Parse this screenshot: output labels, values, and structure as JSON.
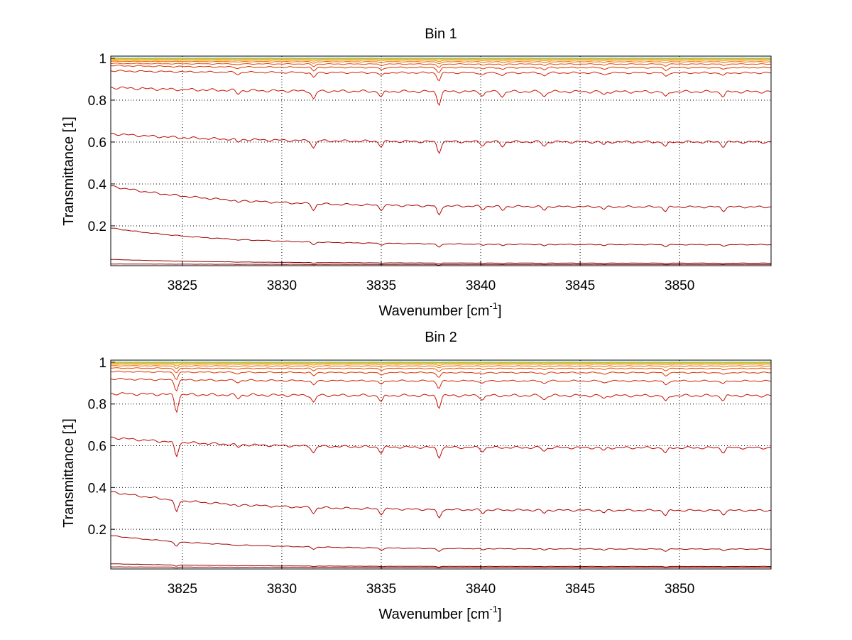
{
  "chart_data": [
    {
      "type": "line",
      "title": "Bin 1",
      "xlabel": "Wavenumber [cm",
      "xlabel_sup": "-1",
      "xlabel_suffix": "]",
      "ylabel": "Transmittance [1]",
      "xlim": [
        3821.4,
        3854.6
      ],
      "ylim": [
        0.01,
        1.01
      ],
      "xticks": [
        3825,
        3830,
        3835,
        3840,
        3845,
        3850
      ],
      "yticks": [
        0.2,
        0.4,
        0.6,
        0.8,
        1
      ],
      "ytick_labels": [
        "0.2",
        "0.4",
        "0.6",
        "0.8",
        "1"
      ],
      "grid": true,
      "features": [
        {
          "x": 3831.6,
          "depth": 1.0
        },
        {
          "x": 3835.0,
          "depth": 0.7
        },
        {
          "x": 3837.9,
          "depth": 1.5
        },
        {
          "x": 3827.8,
          "depth": 0.4
        },
        {
          "x": 3840.1,
          "depth": 0.5
        },
        {
          "x": 3841.1,
          "depth": 0.6
        },
        {
          "x": 3843.2,
          "depth": 0.6
        },
        {
          "x": 3846.2,
          "depth": 0.4
        },
        {
          "x": 3849.3,
          "depth": 0.7
        },
        {
          "x": 3852.2,
          "depth": 0.6
        }
      ],
      "series": [
        {
          "start": 0.018,
          "end": 0.016,
          "depth": 0.002,
          "color": "#800000"
        },
        {
          "start": 0.04,
          "end": 0.022,
          "depth": 0.003,
          "color": "#8b0000"
        },
        {
          "start": 0.19,
          "end": 0.11,
          "depth": 0.012,
          "color": "#a00000"
        },
        {
          "start": 0.39,
          "end": 0.29,
          "depth": 0.03,
          "color": "#b00000"
        },
        {
          "start": 0.64,
          "end": 0.6,
          "depth": 0.035,
          "color": "#c00000"
        },
        {
          "start": 0.86,
          "end": 0.84,
          "depth": 0.04,
          "color": "#cc1100"
        },
        {
          "start": 0.94,
          "end": 0.93,
          "depth": 0.025,
          "color": "#d42000"
        },
        {
          "start": 0.965,
          "end": 0.955,
          "depth": 0.018,
          "color": "#dd3300"
        },
        {
          "start": 0.975,
          "end": 0.972,
          "depth": 0.012,
          "color": "#e64a00"
        },
        {
          "start": 0.985,
          "end": 0.983,
          "depth": 0.007,
          "color": "#ee6600"
        },
        {
          "start": 0.99,
          "end": 0.99,
          "depth": 0.004,
          "color": "#f59000"
        },
        {
          "start": 0.995,
          "end": 0.995,
          "depth": 0.002,
          "color": "#ffb000"
        },
        {
          "start": 0.998,
          "end": 0.998,
          "depth": 0.001,
          "color": "#ffd000"
        },
        {
          "start": 1.0,
          "end": 1.0,
          "depth": 0.0005,
          "color": "#e8e000"
        },
        {
          "start": 1.0,
          "end": 1.0,
          "depth": 0.0005,
          "color": "#30c0c0"
        }
      ]
    },
    {
      "type": "line",
      "title": "Bin 2",
      "xlabel": "Wavenumber [cm",
      "xlabel_sup": "-1",
      "xlabel_suffix": "]",
      "ylabel": "Transmittance [1]",
      "xlim": [
        3821.4,
        3854.6
      ],
      "ylim": [
        0.01,
        1.01
      ],
      "xticks": [
        3825,
        3830,
        3835,
        3840,
        3845,
        3850
      ],
      "yticks": [
        0.2,
        0.4,
        0.6,
        0.8,
        1
      ],
      "ytick_labels": [
        "0.2",
        "0.4",
        "0.6",
        "0.8",
        "1"
      ],
      "grid": true,
      "features": [
        {
          "x": 3824.7,
          "depth": 2.0
        },
        {
          "x": 3831.6,
          "depth": 0.9
        },
        {
          "x": 3835.0,
          "depth": 0.8
        },
        {
          "x": 3837.9,
          "depth": 1.4
        },
        {
          "x": 3827.8,
          "depth": 0.4
        },
        {
          "x": 3840.1,
          "depth": 0.5
        },
        {
          "x": 3843.2,
          "depth": 0.5
        },
        {
          "x": 3846.2,
          "depth": 0.4
        },
        {
          "x": 3849.3,
          "depth": 0.8
        },
        {
          "x": 3852.2,
          "depth": 0.6
        }
      ],
      "series": [
        {
          "start": 0.02,
          "end": 0.018,
          "depth": 0.002,
          "color": "#800000"
        },
        {
          "start": 0.035,
          "end": 0.022,
          "depth": 0.003,
          "color": "#8b0000"
        },
        {
          "start": 0.17,
          "end": 0.105,
          "depth": 0.012,
          "color": "#a00000"
        },
        {
          "start": 0.38,
          "end": 0.29,
          "depth": 0.03,
          "color": "#b00000"
        },
        {
          "start": 0.64,
          "end": 0.59,
          "depth": 0.035,
          "color": "#c00000"
        },
        {
          "start": 0.85,
          "end": 0.84,
          "depth": 0.04,
          "color": "#cc1100"
        },
        {
          "start": 0.92,
          "end": 0.91,
          "depth": 0.025,
          "color": "#d42000"
        },
        {
          "start": 0.955,
          "end": 0.95,
          "depth": 0.018,
          "color": "#dd3300"
        },
        {
          "start": 0.972,
          "end": 0.97,
          "depth": 0.012,
          "color": "#e64a00"
        },
        {
          "start": 0.983,
          "end": 0.982,
          "depth": 0.007,
          "color": "#ee6600"
        },
        {
          "start": 0.99,
          "end": 0.99,
          "depth": 0.004,
          "color": "#f59000"
        },
        {
          "start": 0.995,
          "end": 0.995,
          "depth": 0.002,
          "color": "#ffb000"
        },
        {
          "start": 0.998,
          "end": 0.998,
          "depth": 0.001,
          "color": "#ffd000"
        },
        {
          "start": 1.0,
          "end": 1.0,
          "depth": 0.0005,
          "color": "#e8e000"
        },
        {
          "start": 1.0,
          "end": 1.0,
          "depth": 0.0005,
          "color": "#30c0c0"
        }
      ]
    }
  ]
}
